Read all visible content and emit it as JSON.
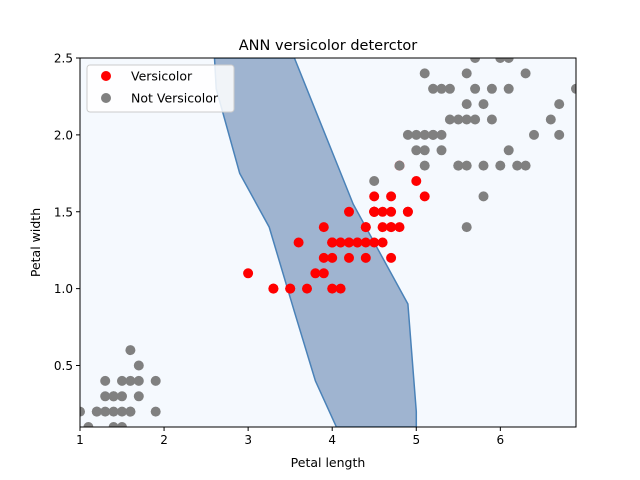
{
  "chart_data": {
    "type": "scatter",
    "title": "ANN versicolor deterctor",
    "xlabel": "Petal length",
    "ylabel": "Petal width",
    "xlim": [
      1.0,
      6.9
    ],
    "ylim": [
      0.1,
      2.5
    ],
    "xticks": [
      1,
      2,
      3,
      4,
      5,
      6
    ],
    "xtick_labels": [
      "1",
      "2",
      "3",
      "4",
      "5",
      "6"
    ],
    "yticks": [
      0.5,
      1.0,
      1.5,
      2.0,
      2.5
    ],
    "ytick_labels": [
      "0.5",
      "1.0",
      "1.5",
      "2.0",
      "2.5"
    ],
    "legend_position": "top-left",
    "grid": false,
    "background_color": "#f5f9fe",
    "decision_region": {
      "color": "#9fb4d0",
      "edge_color": "#4a82b8",
      "boundary_points": [
        [
          2.6,
          2.5
        ],
        [
          3.55,
          2.5
        ],
        [
          4.25,
          1.55
        ],
        [
          4.9,
          0.9
        ],
        [
          5.0,
          0.2
        ],
        [
          5.0,
          0.1
        ],
        [
          4.05,
          0.1
        ],
        [
          3.8,
          0.4
        ],
        [
          3.55,
          0.85
        ],
        [
          3.25,
          1.4
        ],
        [
          2.9,
          1.75
        ],
        [
          2.62,
          2.3
        ]
      ]
    },
    "series": [
      {
        "name": "Versicolor",
        "color": "#ff0000",
        "points": [
          [
            4.7,
            1.4
          ],
          [
            4.5,
            1.5
          ],
          [
            4.9,
            1.5
          ],
          [
            4.0,
            1.3
          ],
          [
            4.6,
            1.5
          ],
          [
            4.5,
            1.3
          ],
          [
            4.7,
            1.6
          ],
          [
            3.3,
            1.0
          ],
          [
            4.6,
            1.3
          ],
          [
            3.9,
            1.4
          ],
          [
            3.5,
            1.0
          ],
          [
            4.2,
            1.5
          ],
          [
            4.0,
            1.0
          ],
          [
            4.7,
            1.4
          ],
          [
            3.6,
            1.3
          ],
          [
            4.4,
            1.4
          ],
          [
            4.5,
            1.5
          ],
          [
            4.1,
            1.0
          ],
          [
            4.5,
            1.5
          ],
          [
            3.9,
            1.1
          ],
          [
            4.8,
            1.8
          ],
          [
            4.0,
            1.3
          ],
          [
            4.9,
            1.5
          ],
          [
            4.7,
            1.2
          ],
          [
            4.3,
            1.3
          ],
          [
            4.4,
            1.4
          ],
          [
            4.8,
            1.4
          ],
          [
            5.0,
            1.7
          ],
          [
            4.5,
            1.5
          ],
          [
            3.5,
            1.0
          ],
          [
            3.8,
            1.1
          ],
          [
            3.7,
            1.0
          ],
          [
            3.9,
            1.2
          ],
          [
            5.1,
            1.6
          ],
          [
            4.5,
            1.5
          ],
          [
            4.5,
            1.6
          ],
          [
            4.7,
            1.5
          ],
          [
            4.4,
            1.3
          ],
          [
            4.1,
            1.3
          ],
          [
            4.0,
            1.3
          ],
          [
            4.4,
            1.2
          ],
          [
            4.6,
            1.4
          ],
          [
            4.0,
            1.2
          ],
          [
            3.3,
            1.0
          ],
          [
            4.2,
            1.3
          ],
          [
            4.2,
            1.2
          ],
          [
            4.2,
            1.3
          ],
          [
            4.3,
            1.3
          ],
          [
            3.0,
            1.1
          ],
          [
            4.1,
            1.3
          ]
        ]
      },
      {
        "name": "Not Versicolor",
        "color": "#808080",
        "points": [
          [
            1.4,
            0.2
          ],
          [
            1.3,
            0.2
          ],
          [
            1.5,
            0.2
          ],
          [
            1.7,
            0.4
          ],
          [
            1.4,
            0.3
          ],
          [
            1.5,
            0.1
          ],
          [
            1.6,
            0.2
          ],
          [
            1.1,
            0.1
          ],
          [
            1.2,
            0.2
          ],
          [
            1.3,
            0.4
          ],
          [
            1.7,
            0.3
          ],
          [
            1.0,
            0.2
          ],
          [
            1.7,
            0.5
          ],
          [
            1.9,
            0.2
          ],
          [
            1.6,
            0.4
          ],
          [
            1.5,
            0.4
          ],
          [
            1.4,
            0.1
          ],
          [
            1.2,
            0.2
          ],
          [
            1.6,
            0.6
          ],
          [
            1.9,
            0.4
          ],
          [
            1.3,
            0.3
          ],
          [
            1.5,
            0.3
          ],
          [
            1.6,
            0.2
          ],
          [
            1.4,
            0.3
          ],
          [
            6.0,
            2.5
          ],
          [
            5.1,
            1.9
          ],
          [
            5.9,
            2.1
          ],
          [
            5.6,
            1.8
          ],
          [
            5.8,
            2.2
          ],
          [
            6.6,
            2.1
          ],
          [
            4.5,
            1.7
          ],
          [
            6.3,
            1.8
          ],
          [
            5.8,
            1.8
          ],
          [
            6.1,
            2.5
          ],
          [
            5.1,
            2.0
          ],
          [
            5.3,
            1.9
          ],
          [
            5.5,
            2.1
          ],
          [
            5.0,
            2.0
          ],
          [
            5.1,
            2.4
          ],
          [
            5.3,
            2.3
          ],
          [
            5.5,
            1.8
          ],
          [
            6.7,
            2.2
          ],
          [
            6.9,
            2.3
          ],
          [
            5.7,
            2.3
          ],
          [
            4.9,
            2.0
          ],
          [
            6.7,
            2.0
          ],
          [
            5.7,
            2.1
          ],
          [
            6.0,
            1.8
          ],
          [
            4.8,
            1.8
          ],
          [
            5.8,
            1.6
          ],
          [
            6.1,
            1.9
          ],
          [
            6.4,
            2.0
          ],
          [
            5.6,
            2.2
          ],
          [
            5.6,
            1.4
          ],
          [
            6.1,
            2.3
          ],
          [
            5.5,
            1.8
          ],
          [
            5.4,
            2.1
          ],
          [
            5.6,
            2.4
          ],
          [
            5.2,
            2.3
          ],
          [
            5.4,
            2.3
          ],
          [
            5.2,
            2.0
          ],
          [
            5.0,
            1.9
          ],
          [
            5.2,
            2.0
          ],
          [
            5.1,
            1.8
          ],
          [
            6.2,
            1.8
          ],
          [
            5.6,
            2.1
          ],
          [
            5.7,
            2.5
          ],
          [
            5.9,
            2.3
          ],
          [
            6.3,
            2.4
          ],
          [
            5.3,
            2.0
          ]
        ]
      }
    ]
  }
}
